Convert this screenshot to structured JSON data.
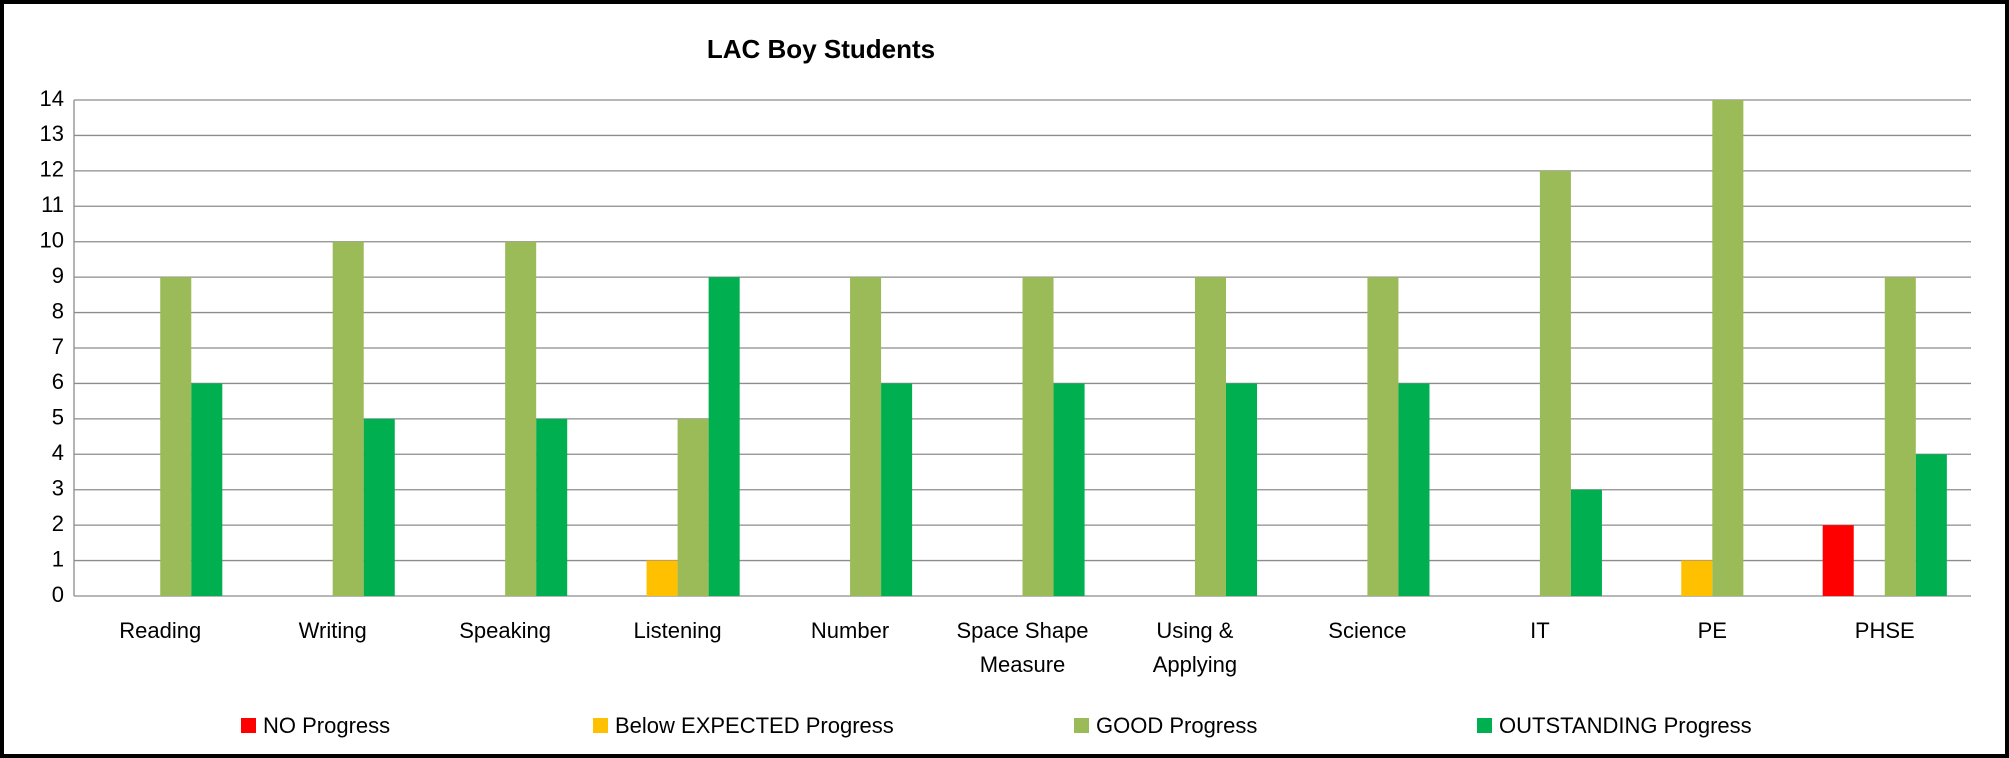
{
  "chart_data": {
    "type": "bar",
    "title": "LAC Boy Students",
    "categories": [
      "Reading",
      "Writing",
      "Speaking",
      "Listening",
      "Number",
      "Space Shape Measure",
      "Using & Applying",
      "Science",
      "IT",
      "PE",
      "PHSE"
    ],
    "series": [
      {
        "name": "NO Progress",
        "color": "#ff0000",
        "values": [
          0,
          0,
          0,
          0,
          0,
          0,
          0,
          0,
          0,
          0,
          2
        ]
      },
      {
        "name": "Below EXPECTED Progress",
        "color": "#ffc000",
        "values": [
          0,
          0,
          0,
          1,
          0,
          0,
          0,
          0,
          0,
          1,
          0
        ]
      },
      {
        "name": "GOOD Progress",
        "color": "#9bbb59",
        "values": [
          9,
          10,
          10,
          5,
          9,
          9,
          9,
          9,
          12,
          14,
          9
        ]
      },
      {
        "name": "OUTSTANDING Progress",
        "color": "#00b050",
        "values": [
          6,
          5,
          5,
          9,
          6,
          6,
          6,
          6,
          3,
          0,
          4
        ]
      }
    ],
    "ylim": [
      0,
      14
    ],
    "yticks": [
      0,
      1,
      2,
      3,
      4,
      5,
      6,
      7,
      8,
      9,
      10,
      11,
      12,
      13,
      14
    ],
    "grid": true,
    "legend": "bottom"
  }
}
